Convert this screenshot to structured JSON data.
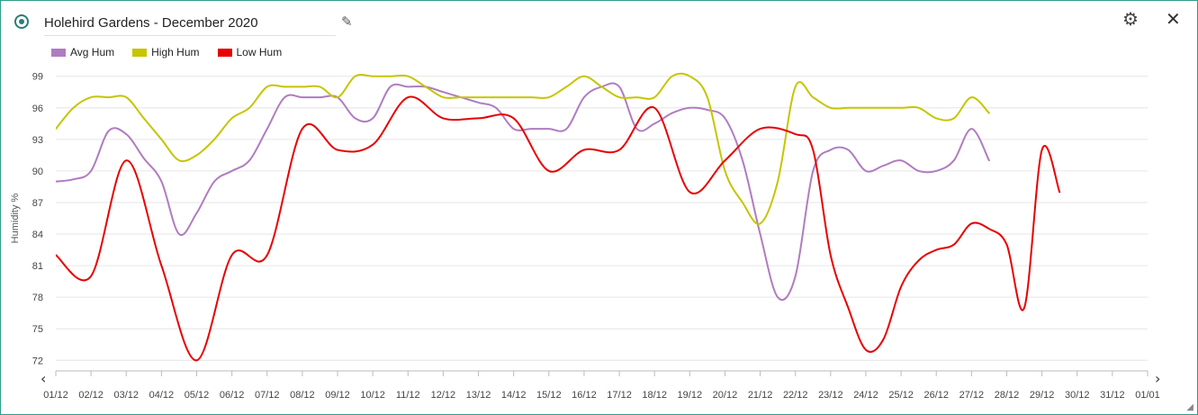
{
  "header": {
    "title": "Holehird Gardens - December 2020",
    "radio_icon": "radio-selected-icon",
    "edit_icon": "pencil-icon",
    "settings_icon": "gear-icon",
    "close_icon": "close-icon"
  },
  "nav": {
    "prev": "‹",
    "next": "›"
  },
  "chart_data": {
    "type": "line",
    "title": "",
    "xlabel": "",
    "ylabel": "Humidity %",
    "ylim": [
      71,
      100
    ],
    "yticks": [
      72,
      75,
      78,
      81,
      84,
      87,
      90,
      93,
      96,
      99
    ],
    "categories": [
      "01/12",
      "02/12",
      "03/12",
      "04/12",
      "05/12",
      "06/12",
      "07/12",
      "08/12",
      "09/12",
      "10/12",
      "11/12",
      "12/12",
      "13/12",
      "14/12",
      "15/12",
      "16/12",
      "17/12",
      "18/12",
      "19/12",
      "20/12",
      "21/12",
      "22/12",
      "23/12",
      "24/12",
      "25/12",
      "26/12",
      "27/12",
      "28/12",
      "29/12",
      "30/12",
      "31/12",
      "01/01"
    ],
    "grid": true,
    "legend_position": "top-left",
    "series": [
      {
        "name": "Avg Hum",
        "color": "#b07cc0",
        "points": [
          [
            0,
            89
          ],
          [
            0.5,
            89.2
          ],
          [
            1,
            90
          ],
          [
            1.5,
            93.8
          ],
          [
            2,
            93.5
          ],
          [
            2.5,
            91.2
          ],
          [
            3,
            89
          ],
          [
            3.5,
            84
          ],
          [
            4,
            86
          ],
          [
            4.5,
            89
          ],
          [
            5,
            90
          ],
          [
            5.5,
            91
          ],
          [
            6,
            94
          ],
          [
            6.5,
            97
          ],
          [
            7,
            97
          ],
          [
            7.5,
            97
          ],
          [
            8,
            97
          ],
          [
            8.5,
            95
          ],
          [
            9,
            95
          ],
          [
            9.5,
            98
          ],
          [
            10,
            98
          ],
          [
            10.5,
            98
          ],
          [
            11,
            97.5
          ],
          [
            11.5,
            97
          ],
          [
            12,
            96.5
          ],
          [
            12.5,
            96
          ],
          [
            13,
            94
          ],
          [
            13.5,
            94
          ],
          [
            14,
            94
          ],
          [
            14.5,
            94
          ],
          [
            15,
            97
          ],
          [
            15.5,
            98
          ],
          [
            16,
            98
          ],
          [
            16.5,
            94
          ],
          [
            17,
            94.5
          ],
          [
            17.5,
            95.5
          ],
          [
            18,
            96
          ],
          [
            18.5,
            95.8
          ],
          [
            19,
            95
          ],
          [
            19.5,
            91
          ],
          [
            20,
            84
          ],
          [
            20.5,
            78
          ],
          [
            21,
            80
          ],
          [
            21.5,
            90
          ],
          [
            22,
            92
          ],
          [
            22.5,
            92
          ],
          [
            23,
            90
          ],
          [
            23.5,
            90.5
          ],
          [
            24,
            91
          ],
          [
            24.5,
            90
          ],
          [
            25,
            90
          ],
          [
            25.5,
            91
          ],
          [
            26,
            94
          ],
          [
            26.5,
            91
          ]
        ]
      },
      {
        "name": "High Hum",
        "color": "#c5c500",
        "points": [
          [
            0,
            94
          ],
          [
            0.5,
            96
          ],
          [
            1,
            97
          ],
          [
            1.5,
            97
          ],
          [
            2,
            97
          ],
          [
            2.5,
            95
          ],
          [
            3,
            93
          ],
          [
            3.5,
            91
          ],
          [
            4,
            91.5
          ],
          [
            4.5,
            93
          ],
          [
            5,
            95
          ],
          [
            5.5,
            96
          ],
          [
            6,
            98
          ],
          [
            6.5,
            98
          ],
          [
            7,
            98
          ],
          [
            7.5,
            98
          ],
          [
            8,
            97
          ],
          [
            8.5,
            99
          ],
          [
            9,
            99
          ],
          [
            9.5,
            99
          ],
          [
            10,
            99
          ],
          [
            10.5,
            98
          ],
          [
            11,
            97
          ],
          [
            11.5,
            97
          ],
          [
            12,
            97
          ],
          [
            12.5,
            97
          ],
          [
            13,
            97
          ],
          [
            13.5,
            97
          ],
          [
            14,
            97
          ],
          [
            14.5,
            98
          ],
          [
            15,
            99
          ],
          [
            15.5,
            98
          ],
          [
            16,
            97
          ],
          [
            16.5,
            97
          ],
          [
            17,
            97
          ],
          [
            17.5,
            99
          ],
          [
            18,
            99
          ],
          [
            18.5,
            97
          ],
          [
            19,
            90
          ],
          [
            19.5,
            87
          ],
          [
            20,
            85
          ],
          [
            20.5,
            89
          ],
          [
            21,
            98
          ],
          [
            21.5,
            97
          ],
          [
            22,
            96
          ],
          [
            22.5,
            96
          ],
          [
            23,
            96
          ],
          [
            23.5,
            96
          ],
          [
            24,
            96
          ],
          [
            24.5,
            96
          ],
          [
            25,
            95
          ],
          [
            25.5,
            95
          ],
          [
            26,
            97
          ],
          [
            26.5,
            95.5
          ]
        ]
      },
      {
        "name": "Low Hum",
        "color": "#e80000",
        "points": [
          [
            0,
            82
          ],
          [
            1,
            80
          ],
          [
            2,
            91
          ],
          [
            3,
            81
          ],
          [
            4,
            72
          ],
          [
            5,
            82
          ],
          [
            6,
            82
          ],
          [
            7,
            94
          ],
          [
            8,
            92
          ],
          [
            9,
            92.5
          ],
          [
            10,
            97
          ],
          [
            11,
            95
          ],
          [
            12,
            95
          ],
          [
            13,
            95
          ],
          [
            14,
            90
          ],
          [
            15,
            92
          ],
          [
            16,
            92
          ],
          [
            17,
            96
          ],
          [
            18,
            88
          ],
          [
            19,
            91
          ],
          [
            20,
            94
          ],
          [
            21,
            93.5
          ],
          [
            21.5,
            92
          ],
          [
            22,
            82
          ],
          [
            22.5,
            77
          ],
          [
            23,
            73
          ],
          [
            23.5,
            74
          ],
          [
            24,
            79
          ],
          [
            24.5,
            81.5
          ],
          [
            25,
            82.5
          ],
          [
            25.5,
            83
          ],
          [
            26,
            85
          ],
          [
            26.5,
            84.5
          ],
          [
            27,
            83
          ],
          [
            27.5,
            77
          ],
          [
            28,
            92
          ],
          [
            28.5,
            88
          ]
        ]
      }
    ]
  }
}
